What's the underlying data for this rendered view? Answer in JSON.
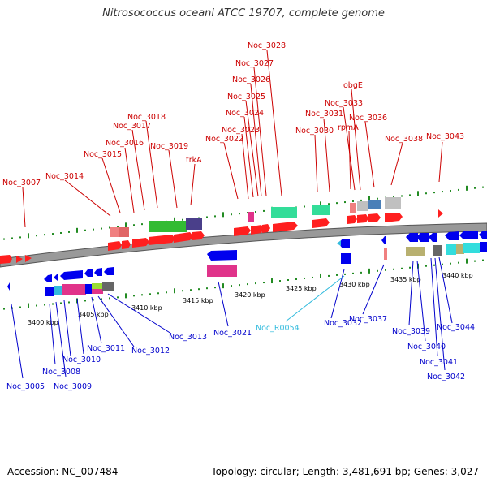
{
  "title": "Nitrosococcus oceani ATCC 19707, complete genome",
  "footer": {
    "accession": "Accession: NC_007484",
    "summary": "Topology: circular; Length: 3,481,691 bp; Genes: 3,027"
  },
  "colors": {
    "forward_label": "#cc0000",
    "reverse_label": "#0000cc",
    "rna_label": "#33bbdd",
    "backbone": "#888888",
    "tick": "#228b22"
  },
  "scale_labels": [
    "3400 kbp",
    "3405 kbp",
    "3410 kbp",
    "3415 kbp",
    "3420 kbp",
    "3425 kbp",
    "3430 kbp",
    "3435 kbp",
    "3440 kbp"
  ],
  "forward_genes": [
    "Noc_3007",
    "Noc_3014",
    "Noc_3015",
    "Noc_3016",
    "Noc_3017",
    "Noc_3018",
    "Noc_3019",
    "trkA",
    "Noc_3022",
    "Noc_3023",
    "Noc_3024",
    "Noc_3025",
    "Noc_3026",
    "Noc_3027",
    "Noc_3028",
    "Noc_3030",
    "Noc_3031",
    "rpmA",
    "Noc_3033",
    "obgE",
    "Noc_3036",
    "Noc_3038",
    "Noc_3043"
  ],
  "reverse_genes": [
    "Noc_3005",
    "Noc_3008",
    "Noc_3009",
    "Noc_3010",
    "Noc_3011",
    "Noc_3012",
    "Noc_3013",
    "Noc_3021",
    "Noc_R0054",
    "Noc_3032",
    "Noc_3037",
    "Noc_3039",
    "Noc_3040",
    "Noc_3041",
    "Noc_3042",
    "Noc_3044"
  ]
}
